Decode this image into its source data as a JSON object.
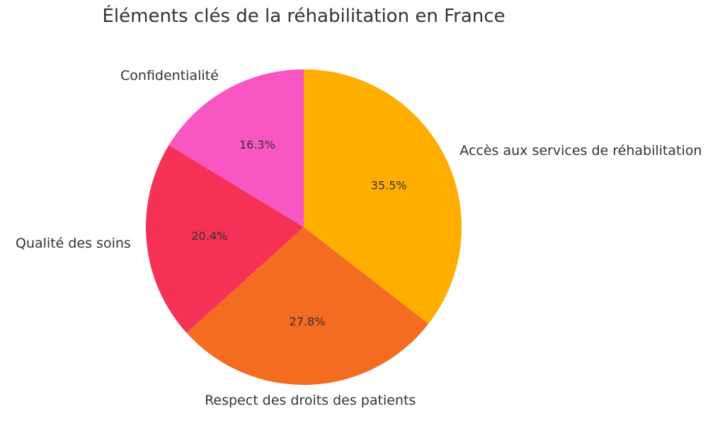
{
  "chart_data": {
    "type": "pie",
    "title": "Éléments clés de la réhabilitation en France",
    "slices": [
      {
        "label": "Accès aux services de réhabilitation",
        "value": 35.5,
        "pct_label": "35.5%",
        "color": "#FFAE00"
      },
      {
        "label": "Respect des droits des patients",
        "value": 27.8,
        "pct_label": "27.8%",
        "color": "#F46B22"
      },
      {
        "label": "Qualité des soins",
        "value": 20.4,
        "pct_label": "20.4%",
        "color": "#F53256"
      },
      {
        "label": "Confidentialité",
        "value": 16.3,
        "pct_label": "16.3%",
        "color": "#F857C3"
      }
    ],
    "start_angle": "top",
    "direction": "clockwise"
  }
}
